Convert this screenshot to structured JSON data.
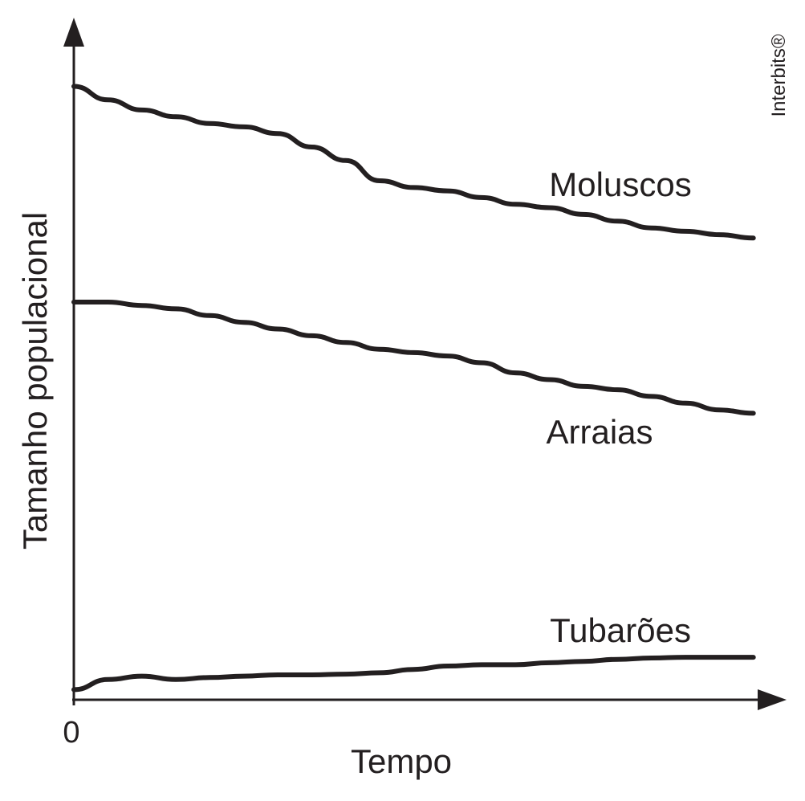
{
  "chart_data": {
    "type": "line",
    "xlabel": "Tempo",
    "ylabel": "Tamanho populacional",
    "x_tick_labels": [
      "0"
    ],
    "x": [
      0,
      0.5,
      1,
      1.5,
      2,
      2.5,
      3,
      3.5,
      4,
      4.5,
      5,
      5.5,
      6,
      6.5,
      7,
      7.5,
      8,
      8.5,
      9,
      9.5,
      10
    ],
    "xlim": [
      0,
      10.5
    ],
    "ylim": [
      0,
      10
    ],
    "series": [
      {
        "name": "Moluscos",
        "values": [
          9.1,
          8.9,
          8.75,
          8.65,
          8.55,
          8.5,
          8.4,
          8.2,
          8.0,
          7.7,
          7.6,
          7.55,
          7.45,
          7.35,
          7.3,
          7.2,
          7.1,
          7.0,
          6.95,
          6.9,
          6.85
        ]
      },
      {
        "name": "Arraias",
        "values": [
          5.9,
          5.9,
          5.85,
          5.8,
          5.7,
          5.6,
          5.5,
          5.4,
          5.3,
          5.2,
          5.15,
          5.1,
          5.0,
          4.85,
          4.75,
          4.65,
          4.6,
          4.5,
          4.4,
          4.3,
          4.25
        ]
      },
      {
        "name": "Tubarões",
        "values": [
          0.15,
          0.3,
          0.35,
          0.3,
          0.33,
          0.35,
          0.37,
          0.37,
          0.38,
          0.4,
          0.45,
          0.5,
          0.52,
          0.52,
          0.55,
          0.57,
          0.6,
          0.62,
          0.63,
          0.63,
          0.63
        ]
      }
    ],
    "grid": false,
    "legend": "none",
    "watermark": "Interbits®"
  }
}
